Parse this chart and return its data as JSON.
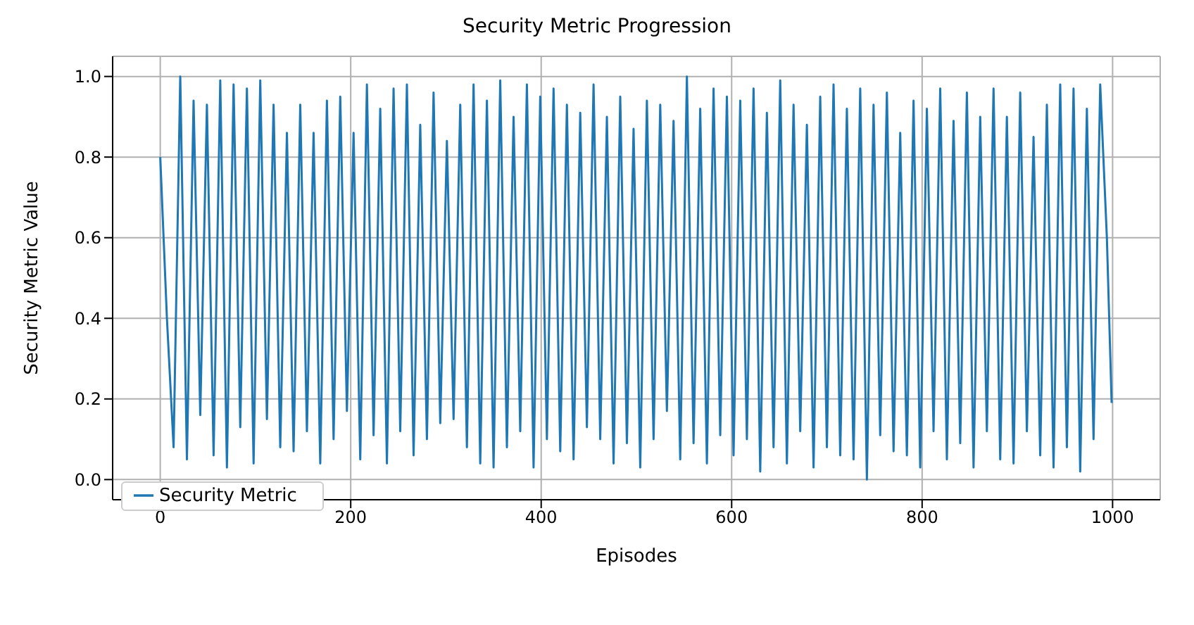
{
  "chart_data": {
    "type": "line",
    "title": "Security Metric Progression",
    "xlabel": "Episodes",
    "ylabel": "Security Metric Value",
    "x": [
      0,
      7,
      14,
      21,
      28,
      35,
      42,
      49,
      56,
      63,
      70,
      77,
      84,
      91,
      98,
      105,
      112,
      119,
      126,
      133,
      140,
      147,
      154,
      161,
      168,
      175,
      182,
      189,
      196,
      203,
      210,
      217,
      224,
      231,
      238,
      245,
      252,
      259,
      266,
      273,
      280,
      287,
      294,
      301,
      308,
      315,
      322,
      329,
      336,
      343,
      350,
      357,
      364,
      371,
      378,
      385,
      392,
      399,
      406,
      413,
      420,
      427,
      434,
      441,
      448,
      455,
      462,
      469,
      476,
      483,
      490,
      497,
      504,
      511,
      518,
      525,
      532,
      539,
      546,
      553,
      560,
      567,
      574,
      581,
      588,
      595,
      602,
      609,
      616,
      623,
      630,
      637,
      644,
      651,
      658,
      665,
      672,
      679,
      686,
      693,
      700,
      707,
      714,
      721,
      728,
      735,
      742,
      749,
      756,
      763,
      770,
      777,
      784,
      791,
      798,
      805,
      812,
      819,
      826,
      833,
      840,
      847,
      854,
      861,
      868,
      875,
      882,
      889,
      896,
      903,
      910,
      917,
      924,
      931,
      938,
      945,
      952,
      959,
      966,
      973,
      980,
      987,
      994,
      999
    ],
    "series": [
      {
        "name": "Security Metric",
        "color": "#1f77b4",
        "values": [
          0.8,
          0.4,
          0.08,
          1.0,
          0.05,
          0.94,
          0.16,
          0.93,
          0.06,
          0.99,
          0.03,
          0.98,
          0.13,
          0.97,
          0.04,
          0.99,
          0.15,
          0.93,
          0.08,
          0.86,
          0.07,
          0.93,
          0.12,
          0.86,
          0.04,
          0.94,
          0.1,
          0.95,
          0.17,
          0.86,
          0.05,
          0.98,
          0.11,
          0.92,
          0.04,
          0.97,
          0.12,
          0.98,
          0.06,
          0.88,
          0.1,
          0.96,
          0.14,
          0.84,
          0.15,
          0.93,
          0.08,
          0.98,
          0.04,
          0.94,
          0.03,
          0.99,
          0.08,
          0.9,
          0.12,
          0.98,
          0.03,
          0.95,
          0.1,
          0.97,
          0.07,
          0.93,
          0.05,
          0.91,
          0.13,
          0.98,
          0.1,
          0.9,
          0.04,
          0.95,
          0.09,
          0.87,
          0.03,
          0.94,
          0.1,
          0.93,
          0.17,
          0.89,
          0.05,
          1.0,
          0.09,
          0.92,
          0.04,
          0.97,
          0.11,
          0.95,
          0.06,
          0.94,
          0.1,
          0.97,
          0.02,
          0.91,
          0.08,
          0.99,
          0.04,
          0.93,
          0.12,
          0.88,
          0.03,
          0.95,
          0.08,
          0.98,
          0.06,
          0.92,
          0.05,
          0.97,
          0.0,
          0.93,
          0.11,
          0.96,
          0.07,
          0.86,
          0.06,
          0.94,
          0.03,
          0.92,
          0.12,
          0.97,
          0.05,
          0.89,
          0.09,
          0.96,
          0.03,
          0.9,
          0.12,
          0.97,
          0.05,
          0.9,
          0.04,
          0.96,
          0.12,
          0.85,
          0.06,
          0.93,
          0.03,
          0.98,
          0.08,
          0.97,
          0.02,
          0.92,
          0.1,
          0.98,
          0.6,
          0.19
        ]
      }
    ],
    "xlim": [
      -50,
      1050
    ],
    "xticks": [
      0,
      200,
      400,
      600,
      800,
      1000
    ],
    "ylim": [
      -0.05,
      1.05
    ],
    "yticks": [
      {
        "value": 0,
        "label": "0.0"
      },
      0.2,
      0.4,
      0.6,
      0.8,
      {
        "value": 1,
        "label": "1.0"
      }
    ],
    "grid": true,
    "legend": "bottom left",
    "marker": "none",
    "line_style": "solid"
  }
}
